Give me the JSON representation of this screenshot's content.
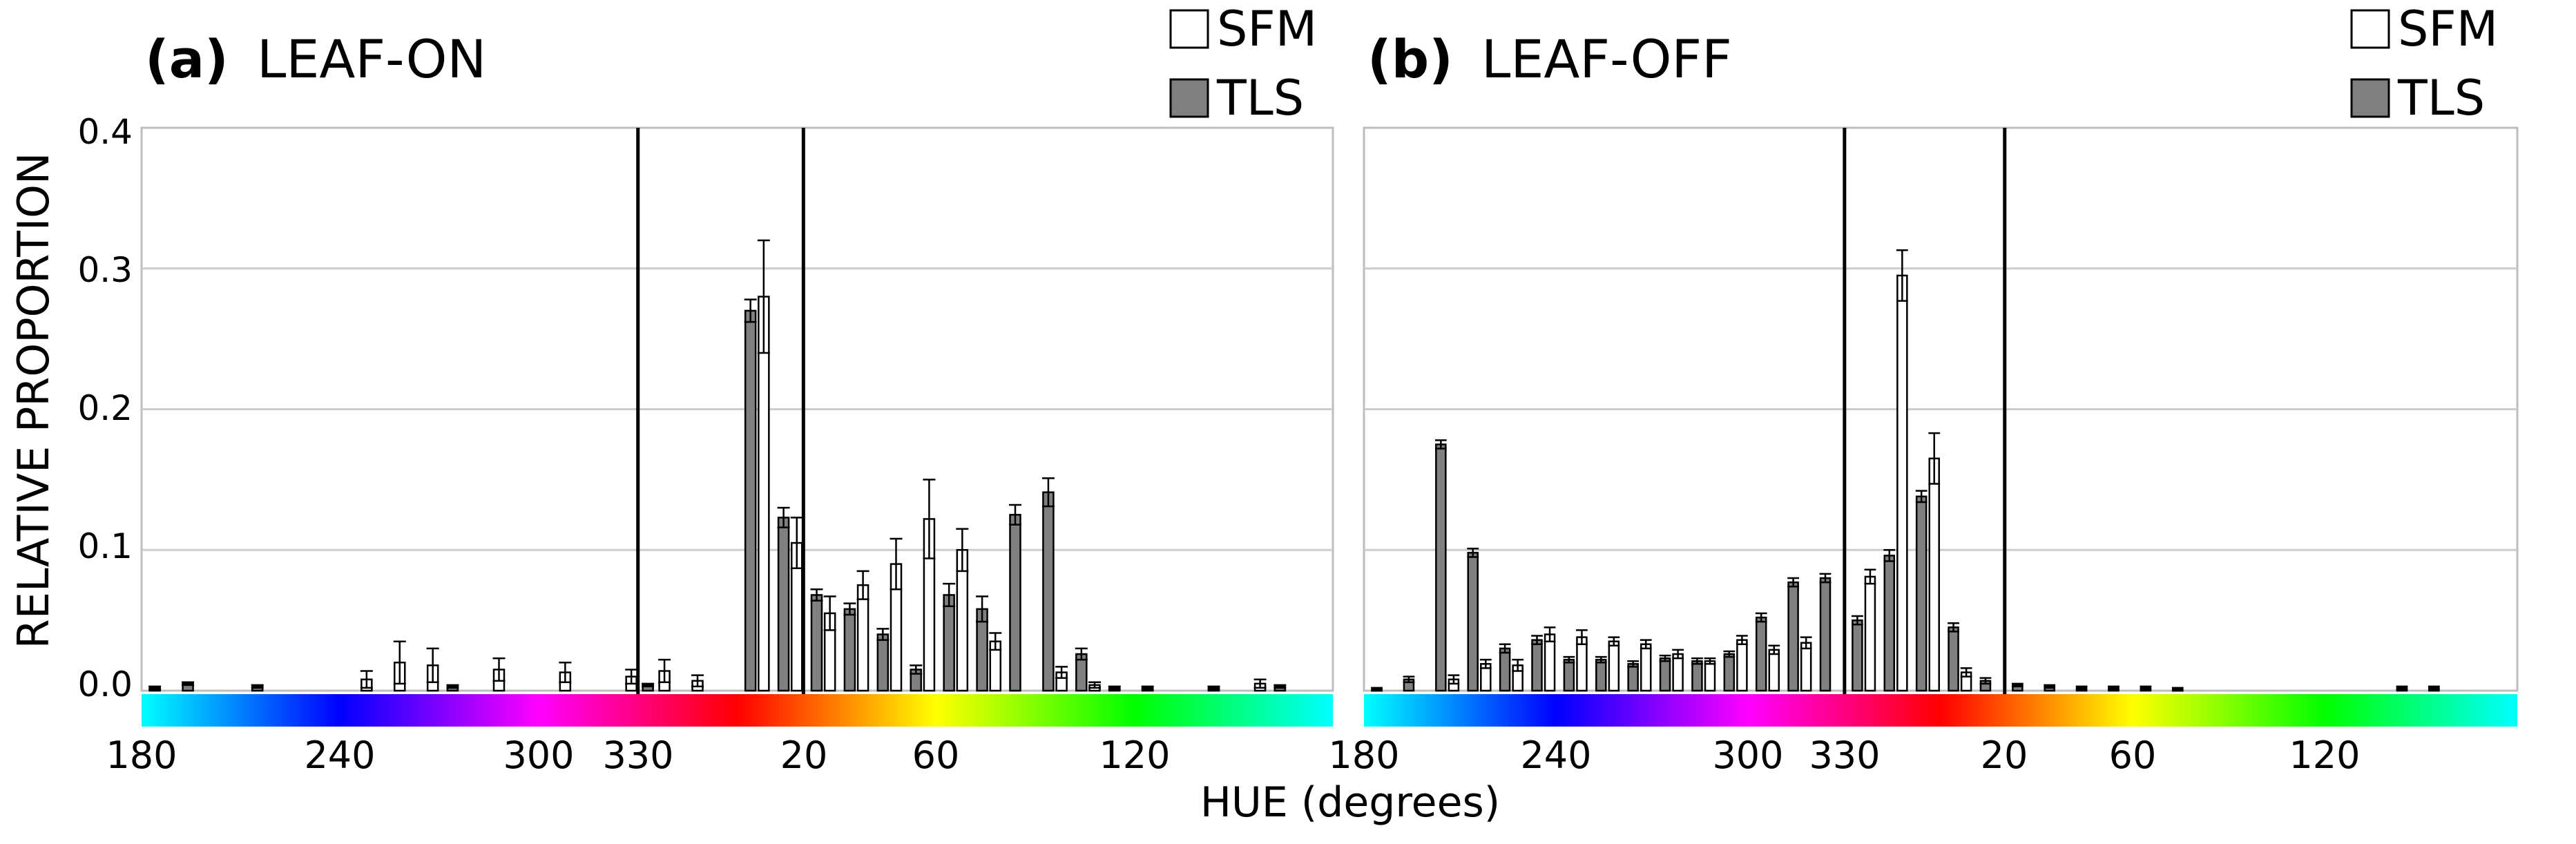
{
  "chart_data": [
    {
      "panel": "a",
      "type": "bar",
      "panel_tag": "(a)",
      "title": "LEAF-ON",
      "xlabel": "",
      "ylabel": "RELATIVE PROPORTION",
      "ylim": [
        0,
        0.4
      ],
      "yticks": [
        "0.0",
        "0.1",
        "0.2",
        "0.3",
        "0.4"
      ],
      "yticks_values": [
        0,
        0.1,
        0.2,
        0.3,
        0.4
      ],
      "grid": true,
      "hue_start": 180,
      "hue_span": 360,
      "xticks": [
        {
          "label": "180",
          "hue": 180
        },
        {
          "label": "240",
          "hue": 240
        },
        {
          "label": "300",
          "hue": 300
        },
        {
          "label": "330",
          "hue": 330
        },
        {
          "label": "20",
          "hue": 20
        },
        {
          "label": "60",
          "hue": 60
        },
        {
          "label": "120",
          "hue": 120
        }
      ],
      "vlines_hue": [
        330,
        20
      ],
      "legend": {
        "position": "top-right",
        "entries": [
          {
            "name": "SFM",
            "color": "#ffffff"
          },
          {
            "name": "TLS",
            "color": "#808080"
          }
        ]
      },
      "series": [
        {
          "name": "TLS",
          "color": "#808080",
          "bars": [
            {
              "hue": 184,
              "value": 0.002,
              "err": 0.001
            },
            {
              "hue": 194,
              "value": 0.005,
              "err": 0.001
            },
            {
              "hue": 215,
              "value": 0.003,
              "err": 0.001
            },
            {
              "hue": 274,
              "value": 0.003,
              "err": 0.001
            },
            {
              "hue": 333,
              "value": 0.004,
              "err": 0.001
            },
            {
              "hue": 364,
              "value": 0.27,
              "err": 0.008
            },
            {
              "hue": 374,
              "value": 0.123,
              "err": 0.007
            },
            {
              "hue": 384,
              "value": 0.068,
              "err": 0.004
            },
            {
              "hue": 394,
              "value": 0.058,
              "err": 0.004
            },
            {
              "hue": 404,
              "value": 0.04,
              "err": 0.004
            },
            {
              "hue": 414,
              "value": 0.015,
              "err": 0.003
            },
            {
              "hue": 424,
              "value": 0.068,
              "err": 0.008
            },
            {
              "hue": 434,
              "value": 0.058,
              "err": 0.009
            },
            {
              "hue": 444,
              "value": 0.125,
              "err": 0.007
            },
            {
              "hue": 454,
              "value": 0.141,
              "err": 0.01
            },
            {
              "hue": 464,
              "value": 0.026,
              "err": 0.004
            },
            {
              "hue": 474,
              "value": 0.002,
              "err": 0.001
            },
            {
              "hue": 484,
              "value": 0.002,
              "err": 0.001
            },
            {
              "hue": 504,
              "value": 0.002,
              "err": 0.001
            },
            {
              "hue": 524,
              "value": 0.003,
              "err": 0.001
            }
          ]
        },
        {
          "name": "SFM",
          "color": "#ffffff",
          "bars": [
            {
              "hue": 248,
              "value": 0.008,
              "err": 0.006
            },
            {
              "hue": 258,
              "value": 0.02,
              "err": 0.015
            },
            {
              "hue": 268,
              "value": 0.018,
              "err": 0.012
            },
            {
              "hue": 288,
              "value": 0.015,
              "err": 0.008
            },
            {
              "hue": 308,
              "value": 0.013,
              "err": 0.007
            },
            {
              "hue": 328,
              "value": 0.01,
              "err": 0.005
            },
            {
              "hue": 338,
              "value": 0.014,
              "err": 0.008
            },
            {
              "hue": 348,
              "value": 0.007,
              "err": 0.004
            },
            {
              "hue": 368,
              "value": 0.28,
              "err": 0.04
            },
            {
              "hue": 378,
              "value": 0.105,
              "err": 0.018
            },
            {
              "hue": 388,
              "value": 0.055,
              "err": 0.012
            },
            {
              "hue": 398,
              "value": 0.075,
              "err": 0.01
            },
            {
              "hue": 408,
              "value": 0.09,
              "err": 0.018
            },
            {
              "hue": 418,
              "value": 0.122,
              "err": 0.028
            },
            {
              "hue": 428,
              "value": 0.1,
              "err": 0.015
            },
            {
              "hue": 438,
              "value": 0.035,
              "err": 0.006
            },
            {
              "hue": 458,
              "value": 0.013,
              "err": 0.004
            },
            {
              "hue": 468,
              "value": 0.004,
              "err": 0.002
            },
            {
              "hue": 518,
              "value": 0.005,
              "err": 0.003
            }
          ]
        }
      ]
    },
    {
      "panel": "b",
      "type": "bar",
      "panel_tag": "(b)",
      "title": "LEAF-OFF",
      "xlabel": "HUE (degrees)",
      "ylabel": "",
      "ylim": [
        0,
        0.4
      ],
      "grid": true,
      "hue_start": 180,
      "hue_span": 360,
      "xticks": [
        {
          "label": "180",
          "hue": 180
        },
        {
          "label": "240",
          "hue": 240
        },
        {
          "label": "300",
          "hue": 300
        },
        {
          "label": "330",
          "hue": 330
        },
        {
          "label": "20",
          "hue": 20
        },
        {
          "label": "60",
          "hue": 60
        },
        {
          "label": "120",
          "hue": 120
        }
      ],
      "vlines_hue": [
        330,
        20
      ],
      "legend": {
        "position": "top-right",
        "entries": [
          {
            "name": "SFM",
            "color": "#ffffff"
          },
          {
            "name": "TLS",
            "color": "#808080"
          }
        ]
      },
      "series": [
        {
          "name": "TLS",
          "color": "#808080",
          "bars": [
            {
              "hue": 184,
              "value": 0.001,
              "err": 0.001
            },
            {
              "hue": 194,
              "value": 0.008,
              "err": 0.002
            },
            {
              "hue": 204,
              "value": 0.175,
              "err": 0.003
            },
            {
              "hue": 214,
              "value": 0.098,
              "err": 0.003
            },
            {
              "hue": 224,
              "value": 0.03,
              "err": 0.003
            },
            {
              "hue": 234,
              "value": 0.036,
              "err": 0.003
            },
            {
              "hue": 244,
              "value": 0.022,
              "err": 0.002
            },
            {
              "hue": 254,
              "value": 0.022,
              "err": 0.002
            },
            {
              "hue": 264,
              "value": 0.019,
              "err": 0.002
            },
            {
              "hue": 274,
              "value": 0.023,
              "err": 0.002
            },
            {
              "hue": 284,
              "value": 0.021,
              "err": 0.002
            },
            {
              "hue": 294,
              "value": 0.026,
              "err": 0.002
            },
            {
              "hue": 304,
              "value": 0.052,
              "err": 0.003
            },
            {
              "hue": 314,
              "value": 0.077,
              "err": 0.003
            },
            {
              "hue": 324,
              "value": 0.08,
              "err": 0.003
            },
            {
              "hue": 334,
              "value": 0.05,
              "err": 0.003
            },
            {
              "hue": 344,
              "value": 0.096,
              "err": 0.004
            },
            {
              "hue": 354,
              "value": 0.138,
              "err": 0.004
            },
            {
              "hue": 364,
              "value": 0.045,
              "err": 0.003
            },
            {
              "hue": 374,
              "value": 0.007,
              "err": 0.002
            },
            {
              "hue": 384,
              "value": 0.004,
              "err": 0.001
            },
            {
              "hue": 394,
              "value": 0.003,
              "err": 0.001
            },
            {
              "hue": 404,
              "value": 0.002,
              "err": 0.001
            },
            {
              "hue": 414,
              "value": 0.002,
              "err": 0.001
            },
            {
              "hue": 424,
              "value": 0.002,
              "err": 0.001
            },
            {
              "hue": 434,
              "value": 0.001,
              "err": 0.001
            },
            {
              "hue": 504,
              "value": 0.002,
              "err": 0.001
            },
            {
              "hue": 514,
              "value": 0.002,
              "err": 0.001
            }
          ]
        },
        {
          "name": "SFM",
          "color": "#ffffff",
          "bars": [
            {
              "hue": 208,
              "value": 0.008,
              "err": 0.003
            },
            {
              "hue": 218,
              "value": 0.019,
              "err": 0.003
            },
            {
              "hue": 228,
              "value": 0.018,
              "err": 0.004
            },
            {
              "hue": 238,
              "value": 0.04,
              "err": 0.005
            },
            {
              "hue": 248,
              "value": 0.038,
              "err": 0.005
            },
            {
              "hue": 258,
              "value": 0.035,
              "err": 0.003
            },
            {
              "hue": 268,
              "value": 0.033,
              "err": 0.003
            },
            {
              "hue": 278,
              "value": 0.026,
              "err": 0.003
            },
            {
              "hue": 288,
              "value": 0.021,
              "err": 0.002
            },
            {
              "hue": 298,
              "value": 0.036,
              "err": 0.003
            },
            {
              "hue": 308,
              "value": 0.029,
              "err": 0.003
            },
            {
              "hue": 318,
              "value": 0.034,
              "err": 0.004
            },
            {
              "hue": 338,
              "value": 0.081,
              "err": 0.005
            },
            {
              "hue": 348,
              "value": 0.295,
              "err": 0.018
            },
            {
              "hue": 358,
              "value": 0.165,
              "err": 0.018
            },
            {
              "hue": 368,
              "value": 0.013,
              "err": 0.003
            }
          ]
        }
      ]
    }
  ]
}
